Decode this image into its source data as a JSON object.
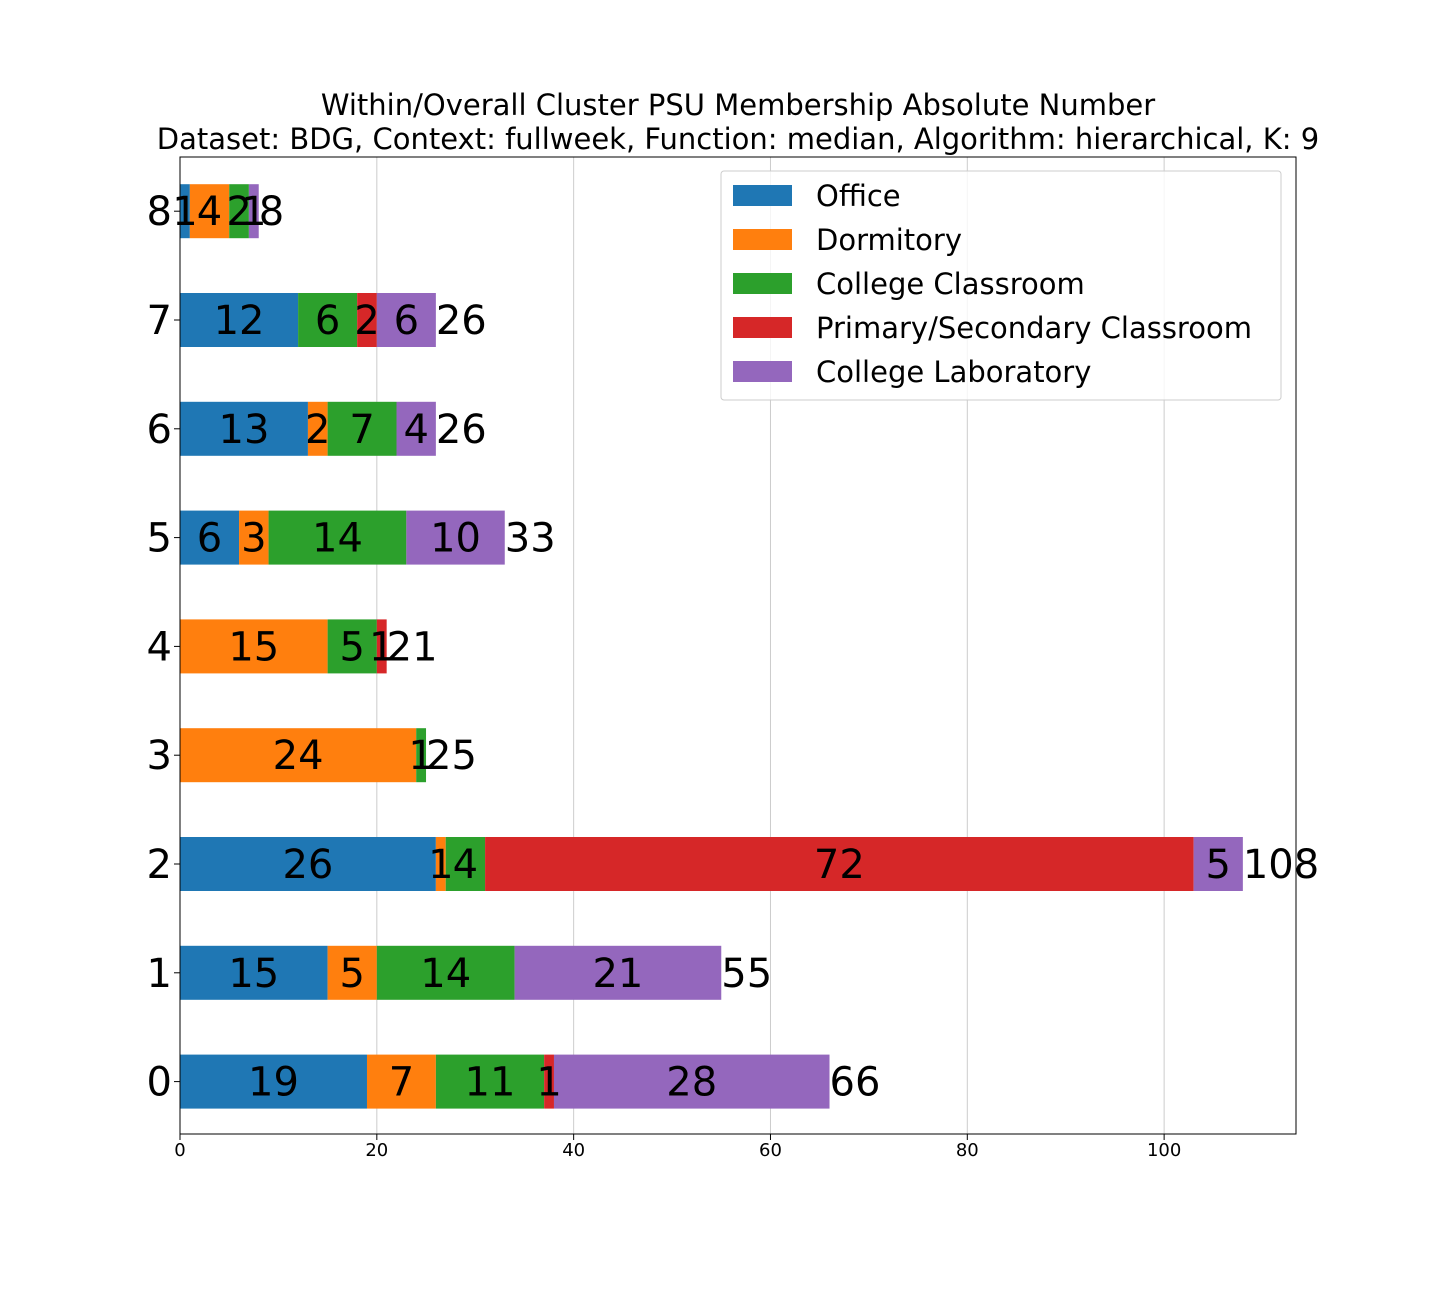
{
  "chart_data": {
    "type": "bar",
    "orientation": "horizontal",
    "stacked": true,
    "title": "Within/Overall Cluster PSU Membership Absolute Number",
    "subtitle": "Dataset: BDG, Context: fullweek, Function: median, Algorithm: hierarchical, K: 9",
    "xlabel": "",
    "ylabel": "",
    "xlim": [
      0,
      113.4
    ],
    "xticks": [
      "0",
      "20",
      "40",
      "60",
      "80",
      "100"
    ],
    "grid": "vertical",
    "legend_position": "top-right",
    "categories": [
      "0",
      "1",
      "2",
      "3",
      "4",
      "5",
      "6",
      "7",
      "8"
    ],
    "series": [
      {
        "name": "Office",
        "color": "#1f77b4",
        "values": [
          19,
          15,
          26,
          0,
          0,
          6,
          13,
          12,
          1
        ]
      },
      {
        "name": "Dormitory",
        "color": "#ff7f0e",
        "values": [
          7,
          5,
          1,
          24,
          15,
          3,
          2,
          0,
          4
        ]
      },
      {
        "name": "College Classroom",
        "color": "#2ca02c",
        "values": [
          11,
          14,
          4,
          1,
          5,
          14,
          7,
          6,
          2
        ]
      },
      {
        "name": "Primary/Secondary Classroom",
        "color": "#d62728",
        "values": [
          1,
          0,
          72,
          0,
          1,
          0,
          0,
          2,
          0
        ]
      },
      {
        "name": "College Laboratory",
        "color": "#9467bd",
        "values": [
          28,
          21,
          5,
          0,
          0,
          10,
          4,
          6,
          1
        ]
      }
    ],
    "totals": [
      66,
      55,
      108,
      25,
      21,
      33,
      26,
      26,
      8
    ]
  }
}
